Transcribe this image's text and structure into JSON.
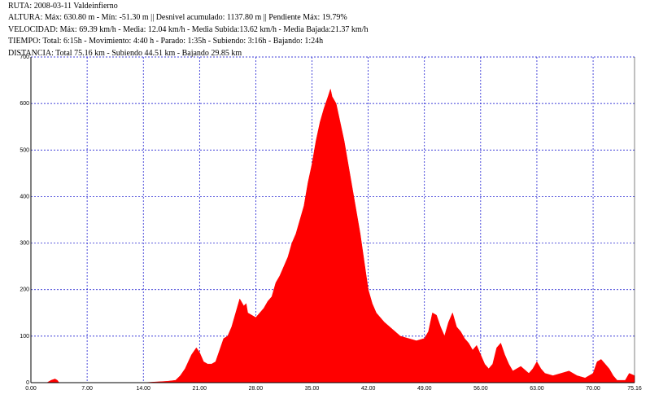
{
  "header": {
    "ruta": "RUTA: 2008-03-11 Valdeinfierno",
    "altura": "ALTURA: Máx: 630.80 m - Mín: -51.30 m || Desnivel acumulado: 1137.80 m || Pendiente Máx: 19.79%",
    "velocidad": "VELOCIDAD:  Máx: 69.39 km/h - Media: 12.04 km/h - Media Subida:13.62 km/h - Media Bajada:21.37 km/h",
    "tiempo": "TIEMPO: Total: 6:15h - Movimiento: 4:40 h - Parado: 1:35h  - Subiendo: 3:16h  - Bajando: 1:24h",
    "distancia": "DISTANCIA: Total 75.16 km - Subiendo 44.51 km - Bajando 29.85 km"
  },
  "colors": {
    "fill": "#ff0000",
    "grid": "#0000cc",
    "background": "#ffffff"
  },
  "chart_data": {
    "type": "area",
    "title": "",
    "xlabel": "",
    "ylabel": "",
    "xlim": [
      0,
      75.16
    ],
    "ylim": [
      0,
      700
    ],
    "grid": true,
    "grid_style": "dotted",
    "x_ticks": [
      "0.00",
      "7.00",
      "14.00",
      "21.00",
      "28.00",
      "35.00",
      "42.00",
      "49.00",
      "56.00",
      "63.00",
      "70.00",
      "75.16"
    ],
    "y_ticks": [
      "0",
      "100",
      "200",
      "300",
      "400",
      "500",
      "600",
      "700"
    ],
    "series": [
      {
        "x": [
          0,
          2.0,
          2.5,
          3.0,
          3.3,
          3.5,
          14.0,
          16.0,
          17.0,
          18.0,
          18.6,
          19.2,
          20.0,
          20.6,
          21.0,
          21.5,
          22.0,
          22.5,
          23.0,
          23.5,
          24.0,
          24.5,
          25.0,
          25.5,
          26.0,
          26.5,
          26.8,
          27.0,
          27.5,
          28.0,
          28.5,
          29.0,
          29.5,
          30.0,
          30.5,
          31.0,
          31.5,
          32.0,
          32.5,
          33.0,
          33.5,
          34.0,
          34.5,
          35.0,
          35.5,
          36.0,
          36.5,
          37.0,
          37.3,
          37.5,
          38.0,
          38.5,
          39.0,
          39.5,
          40.0,
          40.5,
          41.0,
          41.5,
          42.0,
          42.5,
          43.0,
          44.0,
          45.0,
          46.0,
          47.0,
          48.0,
          49.0,
          49.5,
          50.0,
          50.5,
          51.0,
          51.5,
          52.0,
          52.5,
          53.0,
          53.5,
          54.0,
          54.5,
          55.0,
          55.5,
          56.0,
          56.5,
          57.0,
          57.5,
          58.0,
          58.5,
          59.0,
          59.5,
          60.0,
          61.0,
          62.0,
          62.5,
          63.0,
          63.5,
          64.0,
          65.0,
          66.0,
          67.0,
          68.0,
          69.0,
          70.0,
          70.5,
          71.0,
          71.5,
          72.0,
          72.5,
          73.0,
          74.0,
          74.5,
          75.16
        ],
        "y": [
          0,
          0,
          5,
          8,
          5,
          0,
          0,
          2,
          3,
          5,
          15,
          30,
          60,
          75,
          65,
          45,
          40,
          40,
          45,
          70,
          95,
          100,
          120,
          150,
          180,
          165,
          170,
          150,
          145,
          140,
          150,
          160,
          175,
          185,
          215,
          230,
          250,
          270,
          300,
          320,
          350,
          380,
          430,
          470,
          520,
          560,
          590,
          615,
          631,
          615,
          600,
          560,
          520,
          470,
          420,
          370,
          320,
          260,
          200,
          170,
          150,
          130,
          115,
          100,
          95,
          90,
          95,
          110,
          150,
          145,
          120,
          100,
          130,
          150,
          120,
          110,
          95,
          85,
          70,
          80,
          60,
          40,
          30,
          40,
          75,
          85,
          60,
          40,
          25,
          35,
          20,
          30,
          45,
          30,
          20,
          15,
          20,
          25,
          15,
          10,
          20,
          45,
          50,
          40,
          30,
          15,
          5,
          5,
          20,
          15
        ]
      }
    ]
  }
}
